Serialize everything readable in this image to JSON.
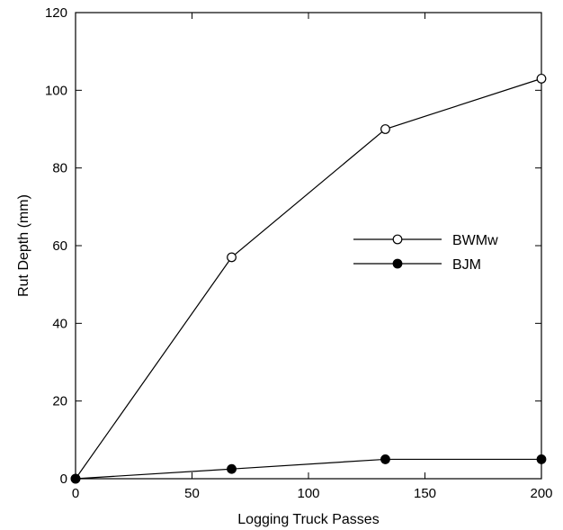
{
  "chart_data": {
    "type": "line",
    "title": "",
    "xlabel": "Logging Truck Passes",
    "ylabel": "Rut Depth (mm)",
    "xlim": [
      0,
      200
    ],
    "ylim": [
      0,
      120
    ],
    "xticks": [
      0,
      50,
      100,
      150,
      200
    ],
    "yticks": [
      0,
      20,
      40,
      60,
      80,
      100,
      120
    ],
    "grid": false,
    "legend_position": "right-middle",
    "series": [
      {
        "name": "BWMw",
        "marker": "open-circle",
        "color": "#000000",
        "x": [
          0,
          67,
          133,
          200
        ],
        "y": [
          0,
          57,
          90,
          103
        ]
      },
      {
        "name": "BJM",
        "marker": "filled-circle",
        "color": "#000000",
        "x": [
          0,
          67,
          133,
          200
        ],
        "y": [
          0,
          2.5,
          5,
          5
        ]
      }
    ]
  }
}
